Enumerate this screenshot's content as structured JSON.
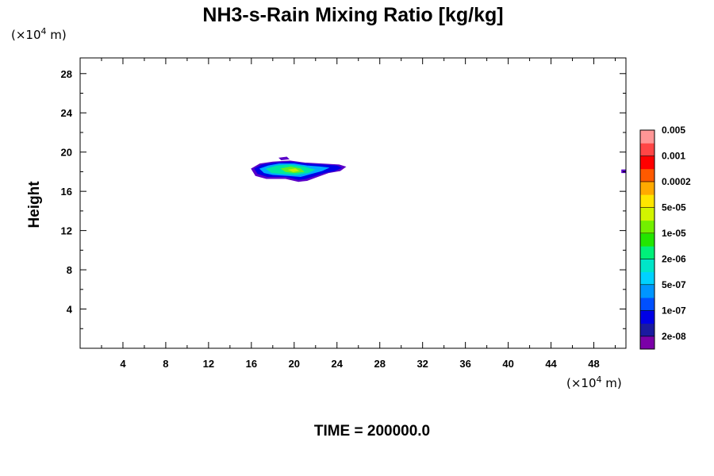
{
  "chart_data": {
    "type": "contour",
    "title": "NH3-s-Rain Mixing Ratio [kg/kg]",
    "ylabel": "Height",
    "x_unit": {
      "prefix": "(×10",
      "exp": "4",
      "suffix": " m)"
    },
    "y_unit": {
      "prefix": "(×10",
      "exp": "4",
      "suffix": " m)"
    },
    "xlim": [
      0,
      51
    ],
    "ylim": [
      0,
      29.6
    ],
    "x_ticks": [
      4,
      8,
      12,
      16,
      20,
      24,
      28,
      32,
      36,
      40,
      44,
      48
    ],
    "x_tick_labels": [
      "4",
      "8",
      "12",
      "16",
      "20",
      "24",
      "28",
      "32",
      "36",
      "40",
      "44",
      "48"
    ],
    "y_ticks": [
      4,
      8,
      12,
      16,
      20,
      24,
      28
    ],
    "y_tick_labels": [
      "4",
      "8",
      "12",
      "16",
      "20",
      "24",
      "28"
    ],
    "time_label": "TIME = 200000.0",
    "colorbar": {
      "colors_bottom_to_top": [
        "#7b00a8",
        "#1a1aa0",
        "#0000e6",
        "#0050ff",
        "#0096ff",
        "#00d2ff",
        "#00e6c8",
        "#00f07a",
        "#23e600",
        "#73f000",
        "#d2f500",
        "#ffe600",
        "#ffaa00",
        "#ff5a00",
        "#ff0000",
        "#ff4646",
        "#ff9696"
      ],
      "labels_bottom_to_top": [
        "2e-08",
        "1e-07",
        "5e-07",
        "2e-06",
        "1e-05",
        "5e-05",
        "0.0002",
        "0.001",
        "0.005"
      ]
    },
    "features": [
      {
        "level": "outer",
        "color": "#5a00c8",
        "polygon": [
          [
            16.0,
            18.3
          ],
          [
            16.8,
            18.8
          ],
          [
            18.0,
            19.0
          ],
          [
            19.6,
            19.1
          ],
          [
            21.0,
            18.9
          ],
          [
            22.6,
            18.8
          ],
          [
            24.2,
            18.7
          ],
          [
            24.8,
            18.5
          ],
          [
            24.3,
            18.1
          ],
          [
            23.2,
            17.9
          ],
          [
            22.2,
            17.5
          ],
          [
            21.2,
            17.1
          ],
          [
            20.4,
            17.0
          ],
          [
            19.2,
            17.3
          ],
          [
            17.4,
            17.3
          ],
          [
            16.4,
            17.6
          ]
        ]
      },
      {
        "level": "1e-07",
        "color": "#0000e6",
        "polygon": [
          [
            16.3,
            18.3
          ],
          [
            17.0,
            18.7
          ],
          [
            18.2,
            18.9
          ],
          [
            19.7,
            19.0
          ],
          [
            21.1,
            18.8
          ],
          [
            22.6,
            18.7
          ],
          [
            24.0,
            18.6
          ],
          [
            24.4,
            18.4
          ],
          [
            23.8,
            18.1
          ],
          [
            22.8,
            17.9
          ],
          [
            22.0,
            17.6
          ],
          [
            21.1,
            17.3
          ],
          [
            20.4,
            17.2
          ],
          [
            19.2,
            17.5
          ],
          [
            17.5,
            17.5
          ],
          [
            16.6,
            17.8
          ]
        ]
      },
      {
        "level": "5e-07",
        "color": "#00aaff",
        "polygon": [
          [
            16.8,
            18.3
          ],
          [
            17.6,
            18.6
          ],
          [
            18.6,
            18.8
          ],
          [
            20.0,
            18.8
          ],
          [
            21.2,
            18.6
          ],
          [
            22.4,
            18.5
          ],
          [
            23.2,
            18.4
          ],
          [
            22.6,
            18.1
          ],
          [
            21.6,
            17.8
          ],
          [
            20.6,
            17.5
          ],
          [
            19.4,
            17.6
          ],
          [
            18.0,
            17.7
          ],
          [
            17.2,
            17.9
          ]
        ]
      },
      {
        "level": "2e-06",
        "color": "#00e6a0",
        "polygon": [
          [
            17.4,
            18.3
          ],
          [
            18.4,
            18.6
          ],
          [
            19.6,
            18.7
          ],
          [
            20.9,
            18.5
          ],
          [
            21.9,
            18.2
          ],
          [
            21.3,
            17.9
          ],
          [
            20.2,
            17.7
          ],
          [
            18.9,
            17.8
          ],
          [
            17.9,
            17.9
          ]
        ]
      },
      {
        "level": "1e-05",
        "color": "#66ee22",
        "polygon": [
          [
            18.8,
            18.3
          ],
          [
            19.7,
            18.5
          ],
          [
            20.6,
            18.3
          ],
          [
            20.9,
            18.0
          ],
          [
            20.0,
            17.9
          ],
          [
            19.2,
            18.0
          ]
        ]
      },
      {
        "level": "5e-05",
        "color": "#c8f000",
        "polygon": [
          [
            19.5,
            18.2
          ],
          [
            20.1,
            18.3
          ],
          [
            20.4,
            18.1
          ],
          [
            19.9,
            18.0
          ]
        ]
      },
      {
        "level": "fragment",
        "color": "#5a00c8",
        "polygon": [
          [
            18.6,
            19.4
          ],
          [
            19.3,
            19.5
          ],
          [
            19.5,
            19.3
          ],
          [
            18.8,
            19.2
          ]
        ]
      },
      {
        "level": "fragment",
        "color": "#5a00c8",
        "polygon": [
          [
            50.6,
            17.9
          ],
          [
            51.0,
            17.9
          ],
          [
            51.0,
            18.2
          ],
          [
            50.6,
            18.2
          ]
        ]
      }
    ]
  }
}
